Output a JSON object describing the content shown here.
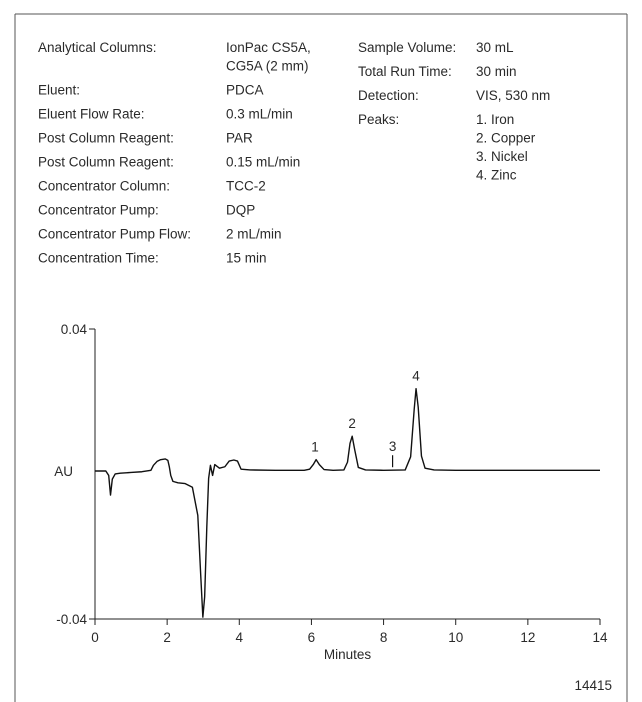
{
  "conditions": {
    "left": [
      {
        "label": "Analytical Columns:",
        "value": [
          "IonPac CS5A,",
          "CG5A (2 mm)"
        ]
      },
      {
        "label": "Eluent:",
        "value": [
          "PDCA"
        ]
      },
      {
        "label": "Eluent Flow Rate:",
        "value": [
          "0.3 mL/min"
        ]
      },
      {
        "label": "Post Column Reagent:",
        "value": [
          "PAR"
        ]
      },
      {
        "label": "Post Column Reagent:",
        "value": [
          "0.15 mL/min"
        ]
      },
      {
        "label": "Concentrator Column:",
        "value": [
          "TCC-2"
        ]
      },
      {
        "label": "Concentrator Pump:",
        "value": [
          "DQP"
        ]
      },
      {
        "label": "Concentrator Pump Flow:",
        "value": [
          "2 mL/min"
        ]
      },
      {
        "label": "Concentration Time:",
        "value": [
          "15 min"
        ]
      }
    ],
    "right": [
      {
        "label": "Sample Volume:",
        "value": [
          "30 mL"
        ]
      },
      {
        "label": "Total Run Time:",
        "value": [
          "30 min"
        ]
      },
      {
        "label": "Detection:",
        "value": [
          "VIS, 530 nm"
        ]
      },
      {
        "label": "Peaks:",
        "value": [
          "1.  Iron",
          "2.  Copper",
          "3.  Nickel",
          "4.  Zinc"
        ]
      }
    ]
  },
  "figure_number": "14415",
  "chart_data": {
    "type": "line",
    "xlabel": "Minutes",
    "ylabel": "AU",
    "xlim": [
      0,
      14
    ],
    "ylim": [
      -0.04,
      0.04
    ],
    "x_ticks": [
      0,
      2,
      4,
      6,
      8,
      10,
      12,
      14
    ],
    "y_ticks": [
      {
        "value": 0.04,
        "label": "0.04"
      },
      {
        "value": -0.04,
        "label": "-0.04"
      }
    ],
    "series": [
      {
        "values": [
          [
            0,
            0
          ],
          [
            0.3,
            0
          ],
          [
            0.38,
            -0.0012
          ],
          [
            0.43,
            -0.0065
          ],
          [
            0.48,
            -0.0022
          ],
          [
            0.56,
            -0.0008
          ],
          [
            0.7,
            -0.0006
          ],
          [
            1.0,
            -0.0004
          ],
          [
            1.3,
            -0.0002
          ],
          [
            1.55,
            0.0002
          ],
          [
            1.62,
            0.0016
          ],
          [
            1.72,
            0.0027
          ],
          [
            1.82,
            0.0032
          ],
          [
            1.95,
            0.0034
          ],
          [
            2.02,
            0.003
          ],
          [
            2.06,
            0.0012
          ],
          [
            2.1,
            -0.0012
          ],
          [
            2.16,
            -0.0028
          ],
          [
            2.3,
            -0.0032
          ],
          [
            2.5,
            -0.0034
          ],
          [
            2.7,
            -0.0044
          ],
          [
            2.85,
            -0.012
          ],
          [
            2.93,
            -0.028
          ],
          [
            2.99,
            -0.0395
          ],
          [
            3.04,
            -0.034
          ],
          [
            3.1,
            -0.015
          ],
          [
            3.15,
            -0.002
          ],
          [
            3.2,
            0.0016
          ],
          [
            3.26,
            -0.0012
          ],
          [
            3.32,
            0.0018
          ],
          [
            3.45,
            0.0008
          ],
          [
            3.6,
            0.0012
          ],
          [
            3.72,
            0.0028
          ],
          [
            3.85,
            0.0031
          ],
          [
            3.95,
            0.0028
          ],
          [
            4.05,
            0.0005
          ],
          [
            4.3,
            0.0003
          ],
          [
            5.0,
            0.0002
          ],
          [
            5.8,
            0.0002
          ],
          [
            5.95,
            0.0005
          ],
          [
            6.05,
            0.0018
          ],
          [
            6.13,
            0.0032
          ],
          [
            6.22,
            0.0018
          ],
          [
            6.35,
            0.0004
          ],
          [
            6.6,
            0.0002
          ],
          [
            6.9,
            0.0003
          ],
          [
            7.0,
            0.0025
          ],
          [
            7.07,
            0.0078
          ],
          [
            7.13,
            0.0098
          ],
          [
            7.2,
            0.006
          ],
          [
            7.3,
            0.001
          ],
          [
            7.5,
            0.0003
          ],
          [
            8.0,
            0.0002
          ],
          [
            8.6,
            0.0003
          ],
          [
            8.75,
            0.004
          ],
          [
            8.85,
            0.0175
          ],
          [
            8.9,
            0.0232
          ],
          [
            8.96,
            0.018
          ],
          [
            9.05,
            0.0042
          ],
          [
            9.15,
            0.0008
          ],
          [
            9.4,
            0.0003
          ],
          [
            10.0,
            0.0002
          ],
          [
            12.0,
            0.0002
          ],
          [
            14.0,
            0.0002
          ]
        ]
      }
    ],
    "annotations": [
      {
        "text": "1",
        "x": 6.1,
        "y": 0.0032
      },
      {
        "text": "2",
        "x": 7.13,
        "y": 0.0098
      },
      {
        "text": "3",
        "x": 8.25,
        "y": 0.0005
      },
      {
        "text": "4",
        "x": 8.9,
        "y": 0.0232
      }
    ]
  }
}
